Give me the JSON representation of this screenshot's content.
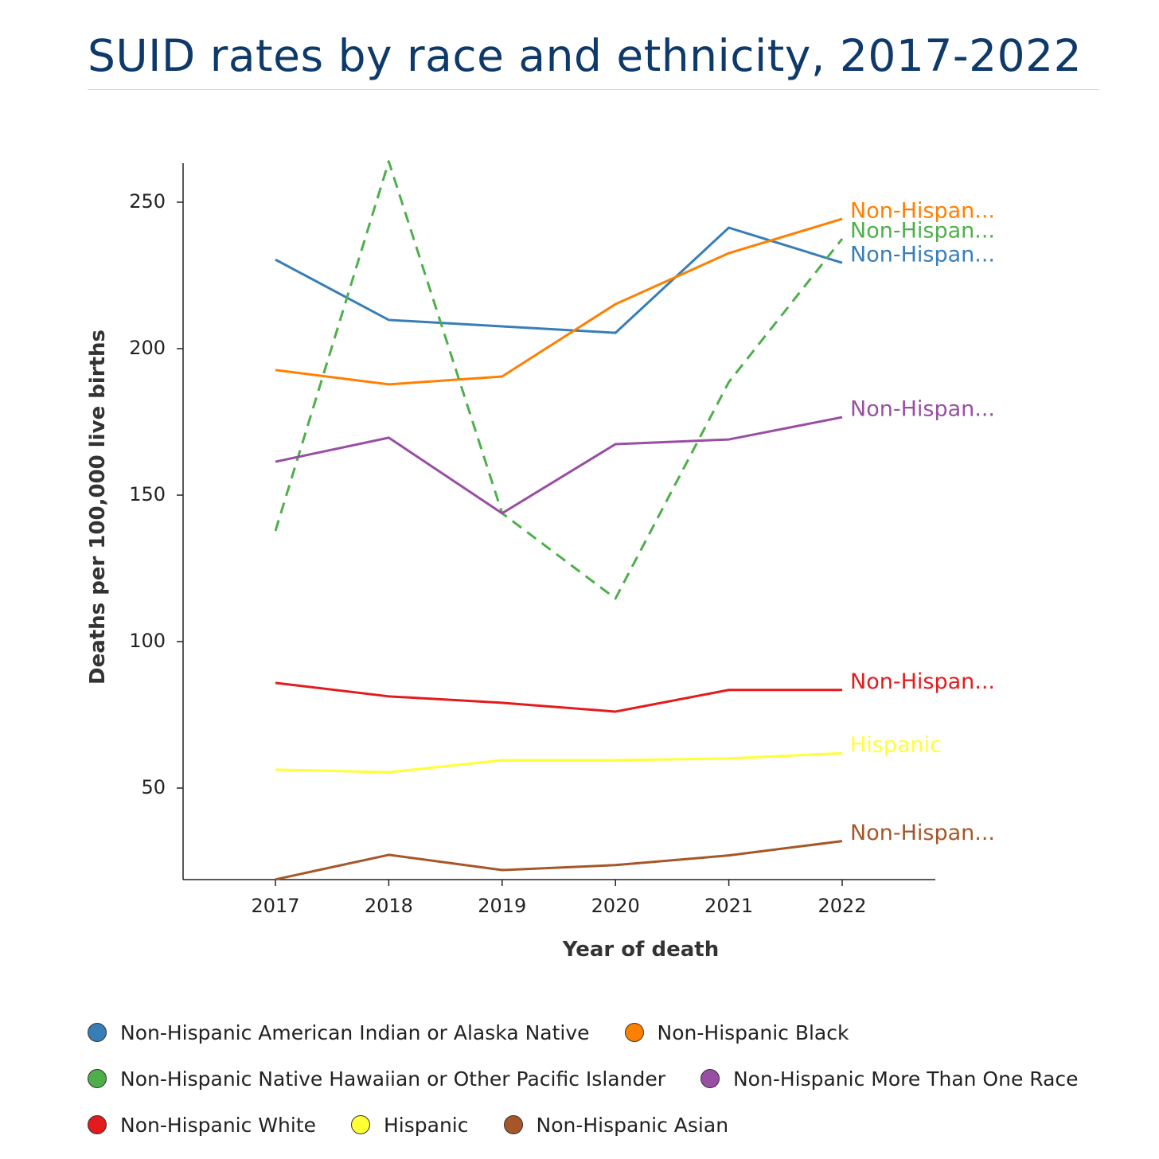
{
  "title": "SUID rates by race and ethnicity, 2017-2022",
  "chart_data": {
    "type": "line",
    "title": "SUID rates by race and ethnicity, 2017-2022",
    "xlabel": "Year of death",
    "ylabel": "Deaths per 100,000 live births",
    "x": [
      2017,
      2018,
      2019,
      2020,
      2021,
      2022
    ],
    "x_ticks": [
      "2017",
      "2018",
      "2019",
      "2020",
      "2021",
      "2022"
    ],
    "y_ticks": [
      "50",
      "100",
      "150",
      "200",
      "250"
    ],
    "ylim": [
      18.75,
      263.5
    ],
    "xlim": [
      2016.2,
      2022.8
    ],
    "grid": false,
    "legend_position": "bottom",
    "series": [
      {
        "name": "Non-Hispanic American Indian or Alaska Native",
        "end_label": "Non-Hispan...",
        "color": "#377eb8",
        "dash": false,
        "values": [
          230.4,
          209.8,
          207.6,
          205.4,
          241.3,
          229.3
        ]
      },
      {
        "name": "Non-Hispanic Black",
        "end_label": "Non-Hispan...",
        "color": "#ff7f00",
        "dash": false,
        "values": [
          192.7,
          187.8,
          190.5,
          215.2,
          232.6,
          244.3
        ]
      },
      {
        "name": "Non-Hispanic Native Hawaiian or Other Pacific Islander",
        "end_label": "Non-Hispan...",
        "color": "#4daf4a",
        "dash": true,
        "values": [
          137.8,
          263.9,
          143.8,
          114.7,
          188.6,
          237.5
        ]
      },
      {
        "name": "Non-Hispanic More Than One Race",
        "end_label": "Non-Hispan...",
        "color": "#984ea3",
        "dash": false,
        "values": [
          161.4,
          169.6,
          143.8,
          167.4,
          169.0,
          176.6
        ]
      },
      {
        "name": "Non-Hispanic White",
        "end_label": "Non-Hispan...",
        "color": "#e41a1c",
        "dash": false,
        "values": [
          85.9,
          81.3,
          79.1,
          76.1,
          83.5,
          83.5
        ]
      },
      {
        "name": "Hispanic",
        "end_label": "Hispanic",
        "color": "#ffff33",
        "dash": false,
        "values": [
          56.3,
          55.4,
          59.5,
          59.5,
          60.1,
          61.9
        ]
      },
      {
        "name": "Non-Hispanic Asian",
        "end_label": "Non-Hispan...",
        "color": "#a65628",
        "dash": false,
        "values": [
          18.8,
          27.2,
          22.0,
          23.7,
          27.0,
          31.9
        ]
      }
    ],
    "legend_rows": [
      [
        0,
        1
      ],
      [
        2,
        3
      ],
      [
        4,
        5,
        6
      ]
    ]
  }
}
